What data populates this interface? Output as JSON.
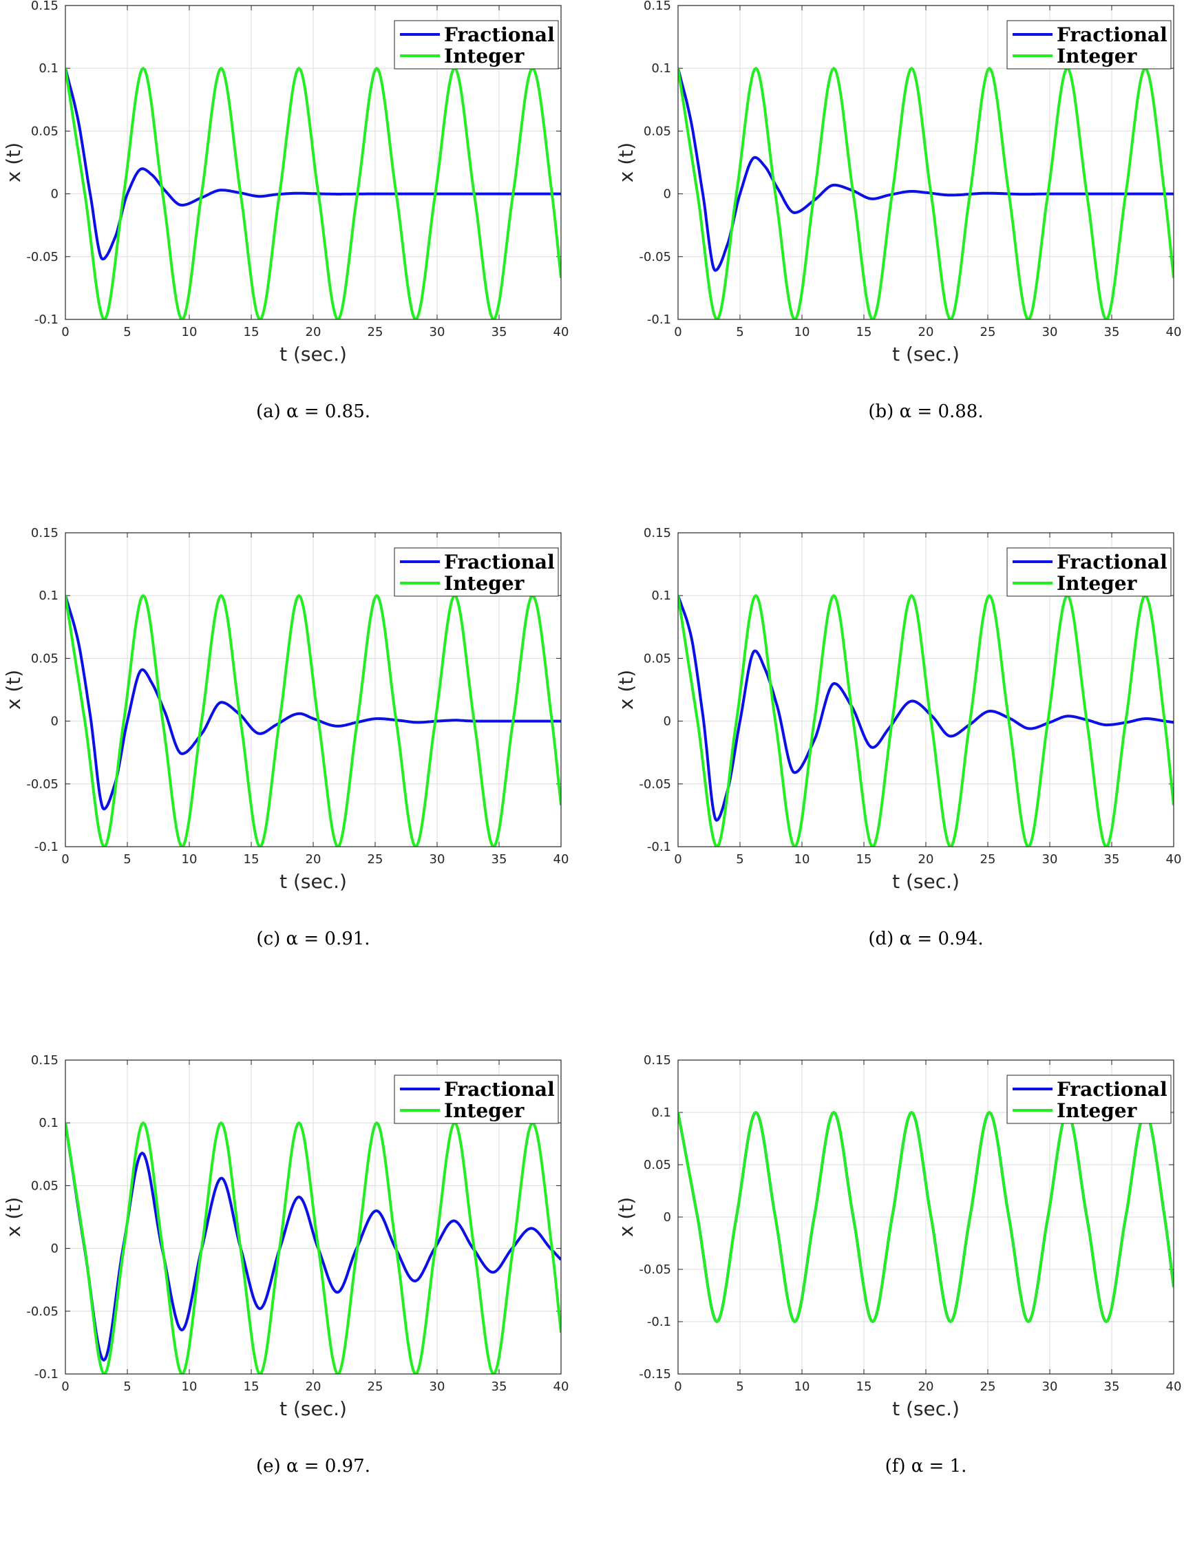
{
  "colors": {
    "fractional": "#0a10e6",
    "integer": "#22ee22",
    "grid": "#dcdcdc",
    "axis": "#262626"
  },
  "chart_data": [
    {
      "type": "line",
      "caption": "(a) α = 0.85.",
      "xlabel": "t (sec.)",
      "ylabel": "x (t)",
      "xlim": [
        0,
        40
      ],
      "ylim": [
        -0.1,
        0.15
      ],
      "xticks": [
        "0",
        "5",
        "10",
        "15",
        "20",
        "25",
        "30",
        "35",
        "40"
      ],
      "yticks": [
        "-0.1",
        "-0.05",
        "0",
        "0.05",
        "0.1",
        "0.15"
      ],
      "grid": true,
      "legend": "top-right",
      "series": [
        {
          "name": "Fractional",
          "color": "#0a10e6",
          "x": [
            0,
            1,
            2,
            3,
            4,
            5,
            6.2,
            7,
            8,
            9.4,
            11,
            12.6,
            14,
            15.7,
            17,
            18.9,
            20,
            22,
            25,
            30,
            35,
            40
          ],
          "y": [
            0.1,
            0.06,
            0.0,
            -0.052,
            -0.035,
            0.0,
            0.02,
            0.015,
            0.003,
            -0.009,
            -0.003,
            0.003,
            0.001,
            -0.002,
            -0.0005,
            0.0005,
            0.0002,
            -0.0002,
            0.0,
            0.0,
            0.0,
            0.0
          ]
        },
        {
          "name": "Integer",
          "color": "#22ee22",
          "x": [
            0,
            1.57,
            3.14,
            4.71,
            6.28,
            7.85,
            9.42,
            10.99,
            12.57,
            14.14,
            15.71,
            17.28,
            18.85,
            20.42,
            21.99,
            23.56,
            25.13,
            26.7,
            28.27,
            29.85,
            31.42,
            32.99,
            34.56,
            36.13,
            37.7,
            39.27,
            40
          ],
          "y": [
            0.1,
            0,
            -0.1,
            0,
            0.1,
            0,
            -0.1,
            0,
            0.1,
            0,
            -0.1,
            0,
            0.1,
            0,
            -0.1,
            0,
            0.1,
            0,
            -0.1,
            0,
            0.1,
            0,
            -0.1,
            0,
            0.1,
            0,
            -0.067
          ]
        }
      ]
    },
    {
      "type": "line",
      "caption": "(b) α = 0.88.",
      "xlabel": "t (sec.)",
      "ylabel": "x (t)",
      "xlim": [
        0,
        40
      ],
      "ylim": [
        -0.1,
        0.15
      ],
      "xticks": [
        "0",
        "5",
        "10",
        "15",
        "20",
        "25",
        "30",
        "35",
        "40"
      ],
      "yticks": [
        "-0.1",
        "-0.05",
        "0",
        "0.05",
        "0.1",
        "0.15"
      ],
      "grid": true,
      "legend": "top-right",
      "series": [
        {
          "name": "Fractional",
          "color": "#0a10e6",
          "x": [
            0,
            1,
            2,
            3,
            4,
            5,
            6.2,
            7,
            8,
            9.4,
            11,
            12.6,
            14,
            15.7,
            17,
            18.9,
            20,
            22,
            25,
            28,
            30,
            35,
            40
          ],
          "y": [
            0.1,
            0.06,
            0.0,
            -0.061,
            -0.04,
            0.0,
            0.029,
            0.022,
            0.005,
            -0.015,
            -0.005,
            0.007,
            0.003,
            -0.004,
            -0.001,
            0.002,
            0.001,
            -0.001,
            0.0005,
            -0.0003,
            0.0,
            0.0,
            0.0
          ]
        },
        {
          "name": "Integer",
          "color": "#22ee22",
          "x": [
            0,
            1.57,
            3.14,
            4.71,
            6.28,
            7.85,
            9.42,
            10.99,
            12.57,
            14.14,
            15.71,
            17.28,
            18.85,
            20.42,
            21.99,
            23.56,
            25.13,
            26.7,
            28.27,
            29.85,
            31.42,
            32.99,
            34.56,
            36.13,
            37.7,
            39.27,
            40
          ],
          "y": [
            0.1,
            0,
            -0.1,
            0,
            0.1,
            0,
            -0.1,
            0,
            0.1,
            0,
            -0.1,
            0,
            0.1,
            0,
            -0.1,
            0,
            0.1,
            0,
            -0.1,
            0,
            0.1,
            0,
            -0.1,
            0,
            0.1,
            0,
            -0.067
          ]
        }
      ]
    },
    {
      "type": "line",
      "caption": "(c) α = 0.91.",
      "xlabel": "t (sec.)",
      "ylabel": "x (t)",
      "xlim": [
        0,
        40
      ],
      "ylim": [
        -0.1,
        0.15
      ],
      "xticks": [
        "0",
        "5",
        "10",
        "15",
        "20",
        "25",
        "30",
        "35",
        "40"
      ],
      "yticks": [
        "-0.1",
        "-0.05",
        "0",
        "0.05",
        "0.1",
        "0.15"
      ],
      "grid": true,
      "legend": "top-right",
      "series": [
        {
          "name": "Fractional",
          "color": "#0a10e6",
          "x": [
            0,
            1,
            2,
            3.1,
            4,
            5,
            6.2,
            7,
            8,
            9.4,
            11,
            12.6,
            14,
            15.7,
            17,
            18.9,
            20,
            22,
            23.5,
            25.2,
            27,
            28.4,
            30,
            31.5,
            33,
            35,
            37,
            40
          ],
          "y": [
            0.1,
            0.065,
            0.005,
            -0.07,
            -0.05,
            0.0,
            0.041,
            0.03,
            0.008,
            -0.026,
            -0.01,
            0.015,
            0.006,
            -0.01,
            -0.003,
            0.006,
            0.002,
            -0.004,
            -0.001,
            0.002,
            0.0005,
            -0.001,
            0.0,
            0.0007,
            0.0,
            0.0,
            0.0,
            0.0
          ]
        },
        {
          "name": "Integer",
          "color": "#22ee22",
          "x": [
            0,
            1.57,
            3.14,
            4.71,
            6.28,
            7.85,
            9.42,
            10.99,
            12.57,
            14.14,
            15.71,
            17.28,
            18.85,
            20.42,
            21.99,
            23.56,
            25.13,
            26.7,
            28.27,
            29.85,
            31.42,
            32.99,
            34.56,
            36.13,
            37.7,
            39.27,
            40
          ],
          "y": [
            0.1,
            0,
            -0.1,
            0,
            0.1,
            0,
            -0.1,
            0,
            0.1,
            0,
            -0.1,
            0,
            0.1,
            0,
            -0.1,
            0,
            0.1,
            0,
            -0.1,
            0,
            0.1,
            0,
            -0.1,
            0,
            0.1,
            0,
            -0.067
          ]
        }
      ]
    },
    {
      "type": "line",
      "caption": "(d) α = 0.94.",
      "xlabel": "t (sec.)",
      "ylabel": "x (t)",
      "xlim": [
        0,
        40
      ],
      "ylim": [
        -0.1,
        0.15
      ],
      "xticks": [
        "0",
        "5",
        "10",
        "15",
        "20",
        "25",
        "30",
        "35",
        "40"
      ],
      "yticks": [
        "-0.1",
        "-0.05",
        "0",
        "0.05",
        "0.1",
        "0.15"
      ],
      "grid": true,
      "legend": "top-right",
      "series": [
        {
          "name": "Fractional",
          "color": "#0a10e6",
          "x": [
            0,
            1,
            2,
            3.1,
            4,
            5,
            6.2,
            7,
            8,
            9.4,
            11,
            12.6,
            14,
            15.7,
            17,
            18.9,
            20.5,
            22,
            23.5,
            25.2,
            26.8,
            28.4,
            30,
            31.5,
            33,
            34.6,
            36.2,
            37.8,
            39.3,
            40
          ],
          "y": [
            0.1,
            0.07,
            0.005,
            -0.079,
            -0.055,
            0.0,
            0.056,
            0.042,
            0.012,
            -0.041,
            -0.015,
            0.03,
            0.012,
            -0.021,
            -0.006,
            0.016,
            0.004,
            -0.012,
            -0.003,
            0.008,
            0.002,
            -0.006,
            -0.001,
            0.004,
            0.001,
            -0.003,
            -0.001,
            0.002,
            0.0,
            -0.001
          ]
        },
        {
          "name": "Integer",
          "color": "#22ee22",
          "x": [
            0,
            1.57,
            3.14,
            4.71,
            6.28,
            7.85,
            9.42,
            10.99,
            12.57,
            14.14,
            15.71,
            17.28,
            18.85,
            20.42,
            21.99,
            23.56,
            25.13,
            26.7,
            28.27,
            29.85,
            31.42,
            32.99,
            34.56,
            36.13,
            37.7,
            39.27,
            40
          ],
          "y": [
            0.1,
            0,
            -0.1,
            0,
            0.1,
            0,
            -0.1,
            0,
            0.1,
            0,
            -0.1,
            0,
            0.1,
            0,
            -0.1,
            0,
            0.1,
            0,
            -0.1,
            0,
            0.1,
            0,
            -0.1,
            0,
            0.1,
            0,
            -0.067
          ]
        }
      ]
    },
    {
      "type": "line",
      "caption": "(e) α = 0.97.",
      "xlabel": "t (sec.)",
      "ylabel": "x (t)",
      "xlim": [
        0,
        40
      ],
      "ylim": [
        -0.1,
        0.15
      ],
      "xticks": [
        "0",
        "5",
        "10",
        "15",
        "20",
        "25",
        "30",
        "35",
        "40"
      ],
      "yticks": [
        "-0.1",
        "-0.05",
        "0",
        "0.05",
        "0.1",
        "0.15"
      ],
      "grid": true,
      "legend": "top-right",
      "series": [
        {
          "name": "Fractional",
          "color": "#0a10e6",
          "x": [
            0,
            1.55,
            3.1,
            4.65,
            6.2,
            7.8,
            9.4,
            11.0,
            12.6,
            14.15,
            15.7,
            17.3,
            18.85,
            20.4,
            21.95,
            23.5,
            25.1,
            26.65,
            28.2,
            29.8,
            31.35,
            32.9,
            34.5,
            36.05,
            37.6,
            39.15,
            40
          ],
          "y": [
            0.1,
            0.0,
            -0.089,
            0.0,
            0.076,
            0.0,
            -0.065,
            0.0,
            0.056,
            0.0,
            -0.048,
            0.0,
            0.041,
            0.0,
            -0.035,
            0.0,
            0.03,
            0.0,
            -0.026,
            0.0,
            0.022,
            0.0,
            -0.019,
            0.0,
            0.016,
            0.0,
            -0.009
          ]
        },
        {
          "name": "Integer",
          "color": "#22ee22",
          "x": [
            0,
            1.57,
            3.14,
            4.71,
            6.28,
            7.85,
            9.42,
            10.99,
            12.57,
            14.14,
            15.71,
            17.28,
            18.85,
            20.42,
            21.99,
            23.56,
            25.13,
            26.7,
            28.27,
            29.85,
            31.42,
            32.99,
            34.56,
            36.13,
            37.7,
            39.27,
            40
          ],
          "y": [
            0.1,
            0,
            -0.1,
            0,
            0.1,
            0,
            -0.1,
            0,
            0.1,
            0,
            -0.1,
            0,
            0.1,
            0,
            -0.1,
            0,
            0.1,
            0,
            -0.1,
            0,
            0.1,
            0,
            -0.1,
            0,
            0.1,
            0,
            -0.067
          ]
        }
      ]
    },
    {
      "type": "line",
      "caption": "(f) α = 1.",
      "xlabel": "t (sec.)",
      "ylabel": "x (t)",
      "xlim": [
        0,
        40
      ],
      "ylim": [
        -0.15,
        0.15
      ],
      "xticks": [
        "0",
        "5",
        "10",
        "15",
        "20",
        "25",
        "30",
        "35",
        "40"
      ],
      "yticks": [
        "-0.15",
        "-0.1",
        "-0.05",
        "0",
        "0.05",
        "0.1",
        "0.15"
      ],
      "grid": true,
      "legend": "top-right",
      "series": [
        {
          "name": "Fractional",
          "color": "#0a10e6",
          "x": [
            0,
            1.57,
            3.14,
            4.71,
            6.28,
            7.85,
            9.42,
            10.99,
            12.57,
            14.14,
            15.71,
            17.28,
            18.85,
            20.42,
            21.99,
            23.56,
            25.13,
            26.7,
            28.27,
            29.85,
            31.42,
            32.99,
            34.56,
            36.13,
            37.7,
            39.27,
            40
          ],
          "y": [
            0.1,
            0,
            -0.1,
            0,
            0.1,
            0,
            -0.1,
            0,
            0.1,
            0,
            -0.1,
            0,
            0.1,
            0,
            -0.1,
            0,
            0.1,
            0,
            -0.1,
            0,
            0.1,
            0,
            -0.1,
            0,
            0.1,
            0,
            -0.067
          ]
        },
        {
          "name": "Integer",
          "color": "#22ee22",
          "x": [
            0,
            1.57,
            3.14,
            4.71,
            6.28,
            7.85,
            9.42,
            10.99,
            12.57,
            14.14,
            15.71,
            17.28,
            18.85,
            20.42,
            21.99,
            23.56,
            25.13,
            26.7,
            28.27,
            29.85,
            31.42,
            32.99,
            34.56,
            36.13,
            37.7,
            39.27,
            40
          ],
          "y": [
            0.1,
            0,
            -0.1,
            0,
            0.1,
            0,
            -0.1,
            0,
            0.1,
            0,
            -0.1,
            0,
            0.1,
            0,
            -0.1,
            0,
            0.1,
            0,
            -0.1,
            0,
            0.1,
            0,
            -0.1,
            0,
            0.1,
            0,
            -0.067
          ]
        }
      ]
    }
  ]
}
